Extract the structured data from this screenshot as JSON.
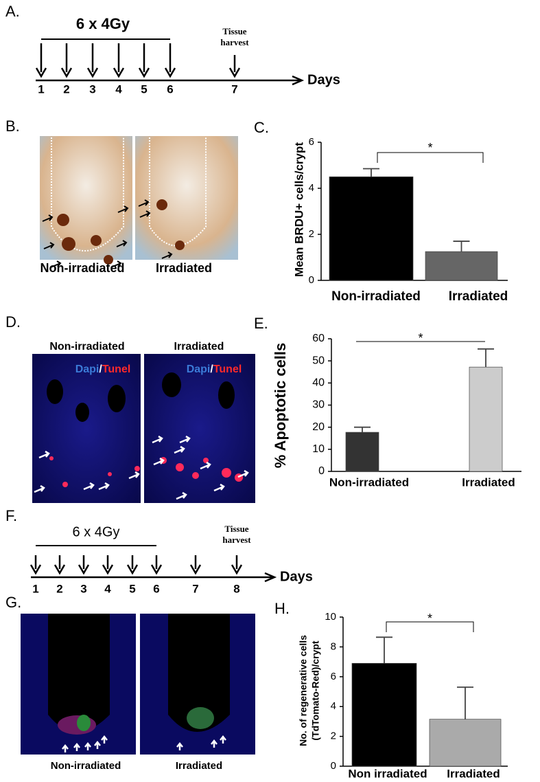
{
  "panel_a": {
    "label": "A.",
    "dose": "6 x 4Gy",
    "harvest": [
      "Tissue",
      "harvest"
    ],
    "days": [
      "1",
      "2",
      "3",
      "4",
      "5",
      "6",
      "7"
    ],
    "axis_label": "Days"
  },
  "panel_b": {
    "label": "B.",
    "images": [
      "Non-irradiated",
      "Irradiated"
    ]
  },
  "panel_d": {
    "label": "D.",
    "images": [
      "Non-irradiated",
      "Irradiated"
    ],
    "stain": [
      "Dapi",
      "/",
      "Tunel"
    ]
  },
  "panel_f": {
    "label": "F.",
    "dose": "6 x 4Gy",
    "harvest": [
      "Tissue",
      "harvest"
    ],
    "days": [
      "1",
      "2",
      "3",
      "4",
      "5",
      "6",
      "7",
      "8"
    ],
    "axis_label": "Days"
  },
  "panel_g": {
    "label": "G.",
    "images": [
      "Non-irradiated",
      "Irradiated"
    ]
  },
  "chart_data": [
    {
      "type": "bar",
      "label": "C.",
      "ylabel": [
        "Mean BRDU+ cells/crypt"
      ],
      "categories": [
        "Non-irradiated",
        "Irradiated"
      ],
      "values": [
        4.5,
        1.25
      ],
      "errors": [
        0.35,
        0.45
      ],
      "colors": [
        "#000000",
        "#666666"
      ],
      "ylim": [
        0,
        6
      ],
      "yticks": [
        0,
        2,
        4,
        6
      ],
      "significance": "*"
    },
    {
      "type": "bar",
      "label": "E.",
      "ylabel": [
        "% Apoptotic cells"
      ],
      "categories": [
        "Non-irradiated",
        "Irradiated"
      ],
      "values": [
        17.7,
        47.2
      ],
      "errors": [
        2.3,
        8.2
      ],
      "colors": [
        "#333333",
        "#cccccc"
      ],
      "ylim": [
        0,
        60
      ],
      "yticks": [
        0,
        10,
        20,
        30,
        40,
        50,
        60
      ],
      "significance": "*"
    },
    {
      "type": "bar",
      "label": "H.",
      "ylabel": [
        "No. of regenerative cells",
        "(TdTomato-Red)/crypt"
      ],
      "categories": [
        "Non irradiated",
        "Irradiated"
      ],
      "values": [
        6.9,
        3.15
      ],
      "errors": [
        1.75,
        2.15
      ],
      "colors": [
        "#000000",
        "#aaaaaa"
      ],
      "ylim": [
        0,
        10
      ],
      "yticks": [
        0,
        2,
        4,
        6,
        8,
        10
      ],
      "significance": "*"
    }
  ]
}
